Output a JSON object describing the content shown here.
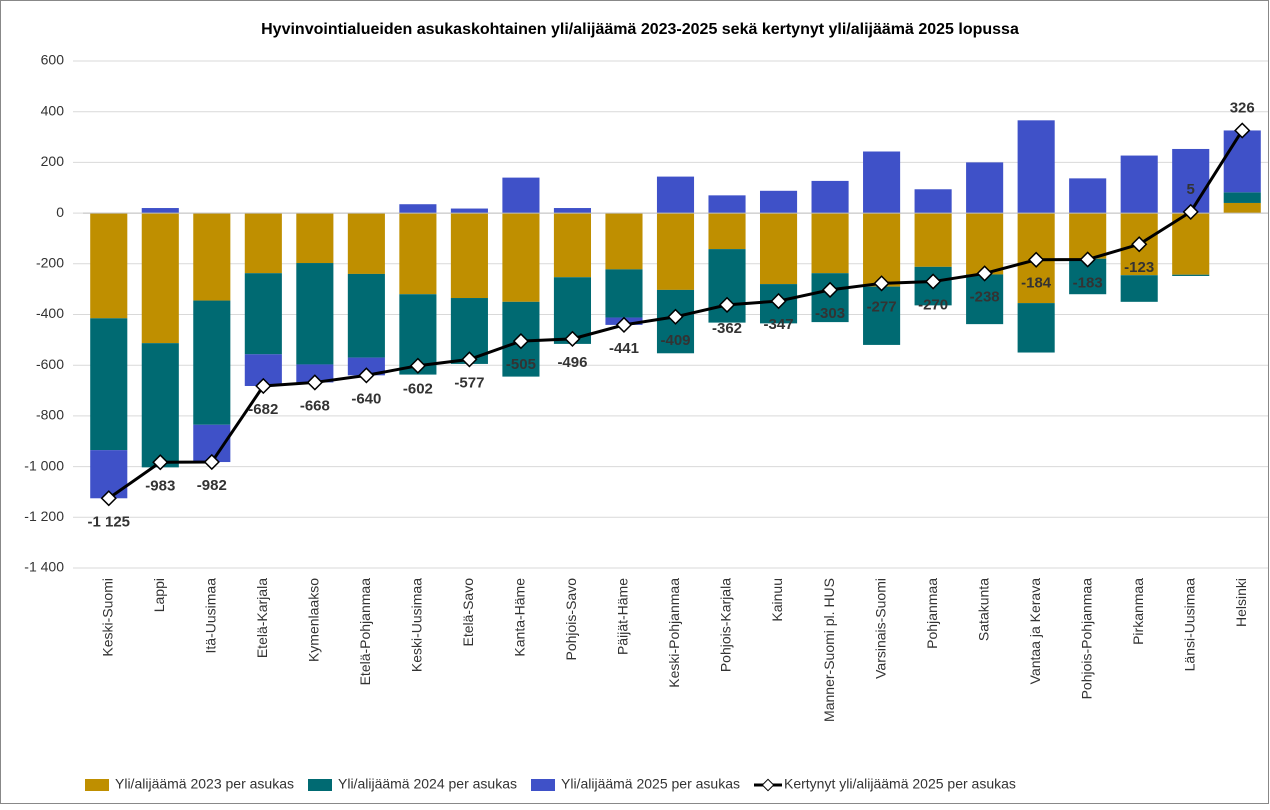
{
  "chart_data": {
    "type": "bar_line",
    "title": "Hyvinvointialueiden asukaskohtainen yli/alijäämä 2023-2025 sekä kertynyt yli/alijäämä 2025 lopussa",
    "categories": [
      "Keski-Suomi",
      "Lappi",
      "Itä-Uusimaa",
      "Etelä-Karjala",
      "Kymenlaakso",
      "Etelä-Pohjanmaa",
      "Keski-Uusimaa",
      "Etelä-Savo",
      "Kanta-Häme",
      "Pohjois-Savo",
      "Päijät-Häme",
      "Keski-Pohjanmaa",
      "Pohjois-Karjala",
      "Kainuu",
      "Manner-Suomi pl. HUS",
      "Varsinais-Suomi",
      "Pohjanmaa",
      "Satakunta",
      "Vantaa ja Kerava",
      "Pohjois-Pohjanmaa",
      "Pirkanmaa",
      "Länsi-Uusimaa",
      "Helsinki"
    ],
    "series": [
      {
        "name": "Yli/alijäämä 2023 per asukas",
        "color": "#bf8f00",
        "values": [
          -415,
          -513,
          -345,
          -237,
          -197,
          -240,
          -320,
          -335,
          -350,
          -253,
          -222,
          -303,
          -142,
          -280,
          -237,
          -290,
          -212,
          -242,
          -355,
          -180,
          -245,
          -243,
          40
        ]
      },
      {
        "name": "Yli/alijäämä 2024 per asukas",
        "color": "#006a72",
        "values": [
          -520,
          -490,
          -490,
          -320,
          -400,
          -330,
          -317,
          -260,
          -295,
          -263,
          -190,
          -250,
          -290,
          -155,
          -193,
          -230,
          -152,
          -196,
          -195,
          -140,
          -105,
          -5,
          42
        ]
      },
      {
        "name": "Yli/alijäämä 2025 per asukas",
        "color": "#3f51c8",
        "values": [
          -190,
          20,
          -147,
          -125,
          -71,
          -70,
          35,
          18,
          140,
          20,
          -29,
          144,
          70,
          88,
          127,
          243,
          94,
          200,
          366,
          137,
          227,
          253,
          244
        ]
      },
      {
        "name": "Kertynyt yli/alijäämä 2025 per asukas",
        "color": "#000000",
        "type": "line",
        "values": [
          -1125,
          -983,
          -982,
          -682,
          -668,
          -640,
          -602,
          -577,
          -505,
          -496,
          -441,
          -409,
          -362,
          -347,
          -303,
          -277,
          -270,
          -238,
          -184,
          -183,
          -123,
          5,
          326
        ],
        "value_labels": [
          "-1 125",
          "-983",
          "-982",
          "-682",
          "-668",
          "-640",
          "-602",
          "-577",
          "-505",
          "-496",
          "-441",
          "-409",
          "-362",
          "-347",
          "-303",
          "-277",
          "-270",
          "-238",
          "-184",
          "-183",
          "-123",
          "5",
          "326"
        ]
      }
    ],
    "ylim": [
      -1400,
      600
    ],
    "yticks": [
      600,
      400,
      200,
      0,
      -200,
      -400,
      -600,
      -800,
      {
        "value": -1000,
        "label": "-1 000"
      },
      {
        "value": -1200,
        "label": "-1 200"
      },
      {
        "value": -1400,
        "label": "-1 400"
      }
    ],
    "grid": true,
    "legend": "bottom"
  }
}
